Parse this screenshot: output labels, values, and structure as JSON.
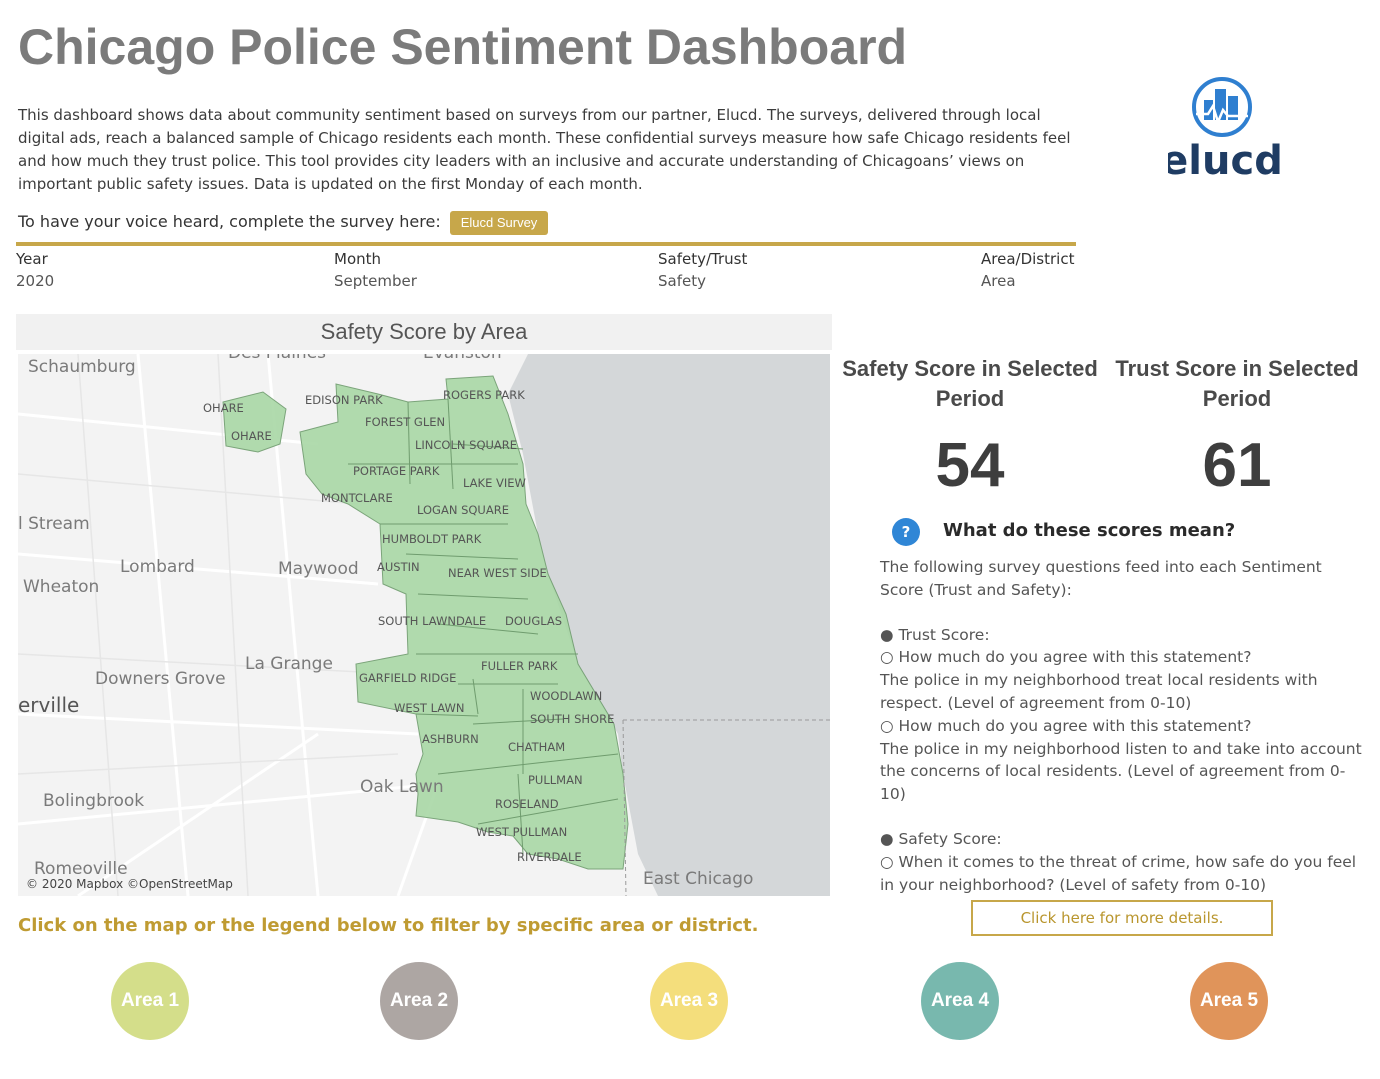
{
  "header": {
    "title": "Chicago Police Sentiment Dashboard",
    "intro": "This dashboard shows data about community sentiment based on surveys from our partner, Elucd. The surveys, delivered through local digital ads, reach a balanced sample of Chicago residents each month. These confidential surveys measure how safe Chicago residents feel and how much they trust police. This tool provides city leaders with an inclusive and accurate understanding of Chicagoans’ views on important public safety issues. Data is updated on the first Monday of each month.",
    "voice_label": "To have your voice heard, complete the survey here:",
    "survey_button": "Elucd Survey",
    "logo_text": "elucd"
  },
  "filters": [
    {
      "label": "Year",
      "value": "2020"
    },
    {
      "label": "Month",
      "value": "September"
    },
    {
      "label": "Safety/Trust",
      "value": "Safety"
    },
    {
      "label": "Area/District",
      "value": "Area"
    }
  ],
  "map": {
    "title": "Safety Score by Area",
    "attribution": "© 2020 Mapbox ©OpenStreetMap",
    "places": [
      "Schaumburg",
      "Des Plaines",
      "Evanston",
      "l Stream",
      "Lombard",
      "Maywood",
      "Wheaton",
      "Downers Grove",
      "La Grange",
      "erville",
      "Oak Lawn",
      "Bolingbrook",
      "Romeoville",
      "East Chicago"
    ],
    "neighborhoods": [
      "OHARE",
      "OHARE",
      "EDISON PARK",
      "ROGERS PARK",
      "FOREST GLEN",
      "LINCOLN SQUARE",
      "PORTAGE PARK",
      "LAKE VIEW",
      "MONTCLARE",
      "LOGAN SQUARE",
      "HUMBOLDT PARK",
      "AUSTIN",
      "NEAR WEST SIDE",
      "SOUTH LAWNDALE",
      "DOUGLAS",
      "FULLER PARK",
      "GARFIELD RIDGE",
      "WOODLAWN",
      "WEST LAWN",
      "SOUTH SHORE",
      "ASHBURN",
      "CHATHAM",
      "PULLMAN",
      "ROSELAND",
      "WEST PULLMAN",
      "RIVERDALE"
    ],
    "region_color": "#a9d8a6",
    "water_color": "#d4d7d9"
  },
  "scores": {
    "safety_title": "Safety Score in Selected Period",
    "safety_value": "54",
    "trust_title": "Trust Score in Selected Period",
    "trust_value": "61"
  },
  "explain": {
    "title": "What do these scores mean?",
    "intro": "The following survey questions feed into each Sentiment Score (Trust and Safety):",
    "trust_head": "● Trust Score:",
    "trust_q1": "○ How much do you agree with this statement?",
    "trust_s1": "The police in my neighborhood treat local residents with respect. (Level of agreement from 0-10)",
    "trust_q2": "○ How much do you agree with this statement?",
    "trust_s2": "The police in my neighborhood listen to and take into account the concerns of local residents. (Level of agreement from 0-10)",
    "safety_head": "● Safety Score:",
    "safety_q1": "○ When it comes to the threat of crime, how safe do you feel in your neighborhood? (Level of safety from 0-10)",
    "details_button": "Click here for more details."
  },
  "legend": {
    "hint": "Click on the map or the legend below to filter by specific area or district.",
    "areas": [
      {
        "label": "Area 1",
        "color": "#d4de8a"
      },
      {
        "label": "Area 2",
        "color": "#ada6a3"
      },
      {
        "label": "Area 3",
        "color": "#f4de7c"
      },
      {
        "label": "Area 4",
        "color": "#78b8ae"
      },
      {
        "label": "Area 5",
        "color": "#e0945a"
      }
    ]
  }
}
